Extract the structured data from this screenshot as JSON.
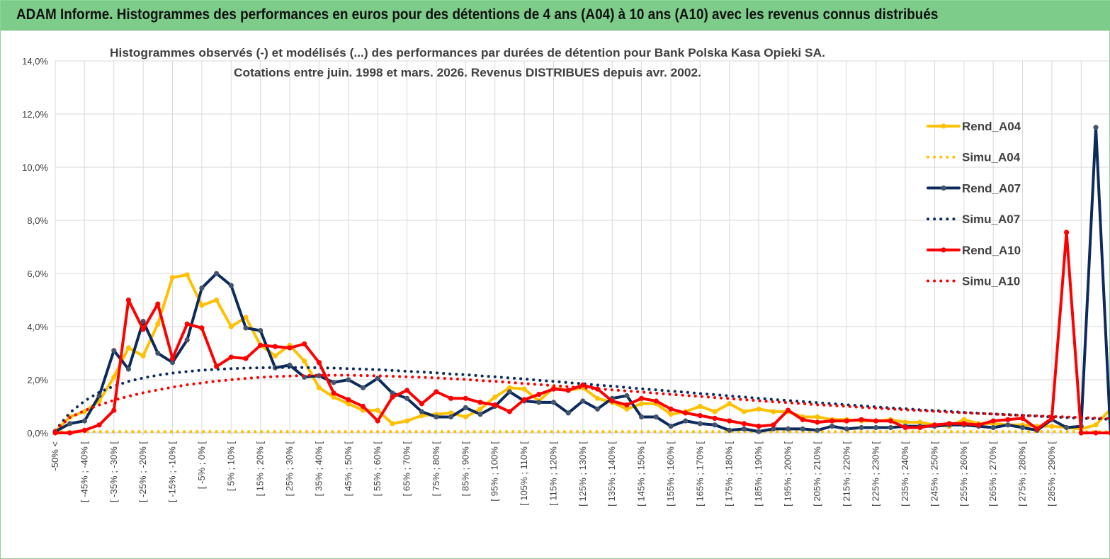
{
  "page": {
    "title": "ADAM Informe. Histogrammes des performances en euros pour des détentions de 4 ans (A04) à 10 ans (A10) avec les revenus connus distribués"
  },
  "chart_data": {
    "type": "line",
    "title_line1": "Histogrammes observés (-) et modélisés (...) des performances par durées de détention pour Bank Polska Kasa Opieki SA.",
    "title_line2": "Cotations entre juin. 1998 et mars. 2026. Revenus DISTRIBUES depuis avr. 2002.",
    "ylim": [
      0,
      14
    ],
    "yticks": [
      0,
      2,
      4,
      6,
      8,
      10,
      12,
      14
    ],
    "ytick_labels": [
      "0,0%",
      "2,0%",
      "4,0%",
      "6,0%",
      "8,0%",
      "10,0%",
      "12,0%",
      "14,0%"
    ],
    "x_labels": [
      "-50% <",
      "[ -45% ; -40% [",
      "[ -35% ; -30% [",
      "[ -25% ; -20% [",
      "[ -15% ; -10% [",
      "[ -5% ; 0% [",
      "[ 5% ; 10% [",
      "[ 15% ; 20% [",
      "[ 25% ; 30% [",
      "[ 35% ; 40% [",
      "[ 45% ; 50% [",
      "[ 55% ; 60% [",
      "[ 65% ; 70% [",
      "[ 75% ; 80% [",
      "[ 85% ; 90% [",
      "[ 95% ; 100% [",
      "[ 105% ; 110% [",
      "[ 115% ; 120% [",
      "[ 125% ; 130% [",
      "[ 135% ; 140% [",
      "[ 145% ; 150% [",
      "[ 155% ; 160% [",
      "[ 165% ; 170% [",
      "[ 175% ; 180% [",
      "[ 185% ; 190% [",
      "[ 195% ; 200% [",
      "[ 205% ; 210% [",
      "[ 215% ; 220% [",
      "[ 225% ; 230% [",
      "[ 235% ; 240% [",
      "[ 245% ; 250% [",
      "[ 255% ; 260% [",
      "[ 265% ; 270% [",
      "[ 275% ; 280% [",
      "[ 285% ; 290% ["
    ],
    "series": [
      {
        "name": "Rend_A04",
        "style": "solid",
        "color": "#ffc000",
        "values": [
          0.05,
          0.6,
          0.8,
          1.2,
          2.1,
          3.2,
          2.9,
          4.1,
          5.85,
          5.95,
          4.8,
          5.0,
          4.0,
          4.35,
          3.3,
          2.9,
          3.3,
          2.7,
          1.7,
          1.35,
          1.1,
          0.85,
          0.85,
          0.35,
          0.45,
          0.65,
          0.7,
          0.75,
          0.6,
          0.9,
          1.35,
          1.7,
          1.65,
          1.2,
          1.7,
          1.6,
          1.7,
          1.3,
          1.15,
          0.9,
          1.1,
          1.1,
          0.7,
          0.8,
          1.0,
          0.8,
          1.1,
          0.8,
          0.9,
          0.8,
          0.8,
          0.6,
          0.6,
          0.5,
          0.5,
          0.45,
          0.45,
          0.5,
          0.4,
          0.4,
          0.3,
          0.25,
          0.5,
          0.35,
          0.35,
          0.3,
          0.3,
          0.25,
          0.25,
          0.2,
          0.15,
          0.3,
          0.9
        ]
      },
      {
        "name": "Simu_A04",
        "style": "dotted",
        "color": "#ffc000",
        "values": [
          0.05,
          0.05,
          0.05,
          0.05,
          0.05,
          0.05,
          0.05,
          0.05,
          0.05,
          0.05,
          0.05,
          0.05,
          0.05,
          0.05,
          0.05,
          0.05,
          0.05,
          0.05,
          0.05,
          0.05,
          0.05,
          0.05,
          0.05,
          0.05,
          0.05,
          0.05,
          0.05,
          0.05,
          0.05,
          0.05,
          0.05,
          0.05,
          0.05,
          0.05,
          0.05,
          0.05,
          0.05,
          0.05,
          0.05,
          0.05,
          0.05,
          0.05,
          0.05,
          0.05,
          0.05,
          0.05,
          0.05,
          0.05,
          0.05,
          0.05,
          0.05,
          0.05,
          0.05,
          0.05,
          0.05,
          0.05,
          0.05,
          0.05,
          0.05,
          0.05,
          0.05,
          0.05,
          0.05,
          0.05,
          0.05,
          0.05,
          0.05,
          0.05,
          0.05,
          0.05,
          0.05,
          0.05,
          0.05
        ]
      },
      {
        "name": "Rend_A07",
        "style": "solid",
        "color": "#0d2a5c",
        "values": [
          0.05,
          0.35,
          0.45,
          1.4,
          3.1,
          2.4,
          4.2,
          3.0,
          2.65,
          3.5,
          5.45,
          6.0,
          5.55,
          3.95,
          3.85,
          2.45,
          2.55,
          2.1,
          2.15,
          1.9,
          2.0,
          1.7,
          2.05,
          1.5,
          1.3,
          0.8,
          0.6,
          0.6,
          0.95,
          0.7,
          1.0,
          1.55,
          1.2,
          1.15,
          1.15,
          0.75,
          1.2,
          0.9,
          1.3,
          1.4,
          0.6,
          0.6,
          0.25,
          0.45,
          0.35,
          0.3,
          0.1,
          0.15,
          0.05,
          0.15,
          0.15,
          0.15,
          0.1,
          0.25,
          0.15,
          0.2,
          0.2,
          0.2,
          0.25,
          0.25,
          0.25,
          0.3,
          0.3,
          0.25,
          0.2,
          0.3,
          0.2,
          0.1,
          0.5,
          0.2,
          0.25,
          11.5,
          0.0
        ]
      },
      {
        "name": "Simu_A07",
        "style": "dotted",
        "color": "#0d2a5c",
        "values": [
          0.1,
          0.76,
          1.2,
          1.53,
          1.76,
          1.94,
          2.07,
          2.17,
          2.25,
          2.31,
          2.36,
          2.39,
          2.42,
          2.44,
          2.45,
          2.46,
          2.46,
          2.46,
          2.45,
          2.44,
          2.42,
          2.4,
          2.38,
          2.35,
          2.32,
          2.29,
          2.26,
          2.22,
          2.19,
          2.15,
          2.11,
          2.07,
          2.03,
          1.98,
          1.94,
          1.89,
          1.85,
          1.8,
          1.76,
          1.71,
          1.66,
          1.62,
          1.57,
          1.53,
          1.48,
          1.44,
          1.39,
          1.35,
          1.3,
          1.26,
          1.22,
          1.18,
          1.14,
          1.1,
          1.06,
          1.02,
          0.98,
          0.94,
          0.91,
          0.87,
          0.84,
          0.81,
          0.77,
          0.74,
          0.71,
          0.69,
          0.66,
          0.63,
          0.6,
          0.58,
          0.55,
          0.53,
          0.51
        ]
      },
      {
        "name": "Rend_A10",
        "style": "solid",
        "color": "#ff0000",
        "values": [
          0.0,
          0.0,
          0.1,
          0.3,
          0.85,
          5.0,
          3.9,
          4.85,
          2.8,
          4.1,
          3.95,
          2.5,
          2.85,
          2.8,
          3.3,
          3.25,
          3.2,
          3.35,
          2.65,
          1.5,
          1.25,
          1.0,
          0.45,
          1.35,
          1.6,
          1.1,
          1.55,
          1.3,
          1.3,
          1.15,
          1.05,
          0.8,
          1.25,
          1.45,
          1.65,
          1.6,
          1.8,
          1.65,
          1.2,
          1.05,
          1.3,
          1.2,
          0.9,
          0.75,
          0.65,
          0.55,
          0.45,
          0.35,
          0.25,
          0.3,
          0.85,
          0.5,
          0.4,
          0.45,
          0.45,
          0.5,
          0.45,
          0.45,
          0.2,
          0.2,
          0.3,
          0.35,
          0.35,
          0.3,
          0.45,
          0.5,
          0.55,
          0.15,
          0.55,
          7.55,
          0.0,
          0.0,
          0.0
        ]
      },
      {
        "name": "Simu_A10",
        "style": "dotted",
        "color": "#ff0000",
        "values": [
          0.1,
          0.58,
          0.84,
          1.05,
          1.23,
          1.38,
          1.51,
          1.62,
          1.72,
          1.81,
          1.88,
          1.95,
          2.0,
          2.05,
          2.09,
          2.12,
          2.14,
          2.16,
          2.17,
          2.17,
          2.17,
          2.16,
          2.15,
          2.13,
          2.11,
          2.09,
          2.07,
          2.04,
          2.01,
          1.97,
          1.94,
          1.9,
          1.86,
          1.82,
          1.78,
          1.74,
          1.7,
          1.66,
          1.62,
          1.58,
          1.54,
          1.49,
          1.45,
          1.41,
          1.37,
          1.33,
          1.29,
          1.25,
          1.21,
          1.17,
          1.14,
          1.1,
          1.06,
          1.03,
          1.0,
          0.96,
          0.93,
          0.9,
          0.87,
          0.84,
          0.81,
          0.78,
          0.76,
          0.73,
          0.71,
          0.68,
          0.66,
          0.64,
          0.62,
          0.6,
          0.58,
          0.56,
          0.54
        ]
      }
    ],
    "legend_position": "right"
  }
}
